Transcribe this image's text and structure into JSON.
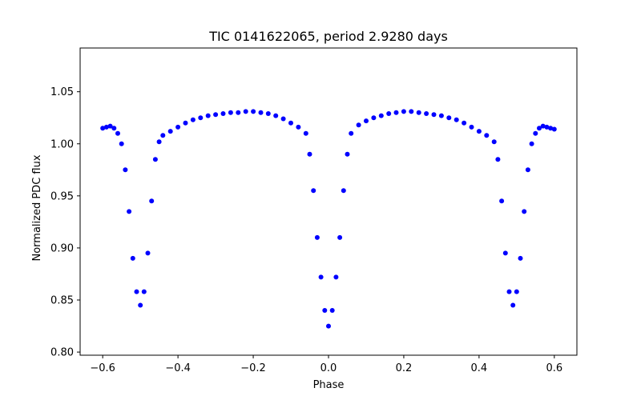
{
  "chart_data": {
    "type": "scatter",
    "title": "TIC 0141622065, period 2.9280 days",
    "xlabel": "Phase",
    "ylabel": "Normalized PDC flux",
    "xlim": [
      -0.66,
      0.66
    ],
    "ylim": [
      0.797,
      1.092
    ],
    "xticks": [
      -0.6,
      -0.4,
      -0.2,
      0.0,
      0.2,
      0.4,
      0.6
    ],
    "xtick_labels": [
      "−0.6",
      "−0.4",
      "−0.2",
      "0.0",
      "0.2",
      "0.4",
      "0.6"
    ],
    "yticks": [
      0.8,
      0.85,
      0.9,
      0.95,
      1.0,
      1.05
    ],
    "ytick_labels": [
      "0.80",
      "0.85",
      "0.90",
      "0.95",
      "1.00",
      "1.05"
    ],
    "grid": false,
    "legend": "none",
    "marker_color": "#0000ff",
    "series": [
      {
        "x": [
          -0.6,
          -0.59,
          -0.58,
          -0.57,
          -0.56,
          -0.55,
          -0.54,
          -0.53,
          -0.52,
          -0.51,
          -0.5,
          -0.49,
          -0.48,
          -0.47,
          -0.46,
          -0.45,
          -0.44,
          -0.42,
          -0.4,
          -0.38,
          -0.36,
          -0.34,
          -0.32,
          -0.3,
          -0.28,
          -0.26,
          -0.24,
          -0.22,
          -0.2,
          -0.18,
          -0.16,
          -0.14,
          -0.12,
          -0.1,
          -0.08,
          -0.06,
          -0.05,
          -0.04,
          -0.03,
          -0.02,
          -0.01,
          0.0,
          0.01,
          0.02,
          0.03,
          0.04,
          0.05,
          0.06,
          0.08,
          0.1,
          0.12,
          0.14,
          0.16,
          0.18,
          0.2,
          0.22,
          0.24,
          0.26,
          0.28,
          0.3,
          0.32,
          0.34,
          0.36,
          0.38,
          0.4,
          0.42,
          0.44,
          0.45,
          0.46,
          0.47,
          0.48,
          0.49,
          0.5,
          0.51,
          0.52,
          0.53,
          0.54,
          0.55,
          0.56,
          0.57,
          0.58,
          0.59,
          0.6
        ],
        "y": [
          1.015,
          1.016,
          1.017,
          1.015,
          1.01,
          1.0,
          0.975,
          0.935,
          0.89,
          0.858,
          0.845,
          0.858,
          0.895,
          0.945,
          0.985,
          1.002,
          1.008,
          1.012,
          1.016,
          1.02,
          1.023,
          1.025,
          1.027,
          1.028,
          1.029,
          1.03,
          1.03,
          1.031,
          1.031,
          1.03,
          1.029,
          1.027,
          1.024,
          1.02,
          1.016,
          1.01,
          0.99,
          0.955,
          0.91,
          0.872,
          0.84,
          0.825,
          0.84,
          0.872,
          0.91,
          0.955,
          0.99,
          1.01,
          1.018,
          1.022,
          1.025,
          1.027,
          1.029,
          1.03,
          1.031,
          1.031,
          1.03,
          1.029,
          1.028,
          1.027,
          1.025,
          1.023,
          1.02,
          1.016,
          1.012,
          1.008,
          1.002,
          0.985,
          0.945,
          0.895,
          0.858,
          0.845,
          0.858,
          0.89,
          0.935,
          0.975,
          1.0,
          1.01,
          1.015,
          1.017,
          1.016,
          1.015,
          1.014
        ]
      }
    ]
  }
}
